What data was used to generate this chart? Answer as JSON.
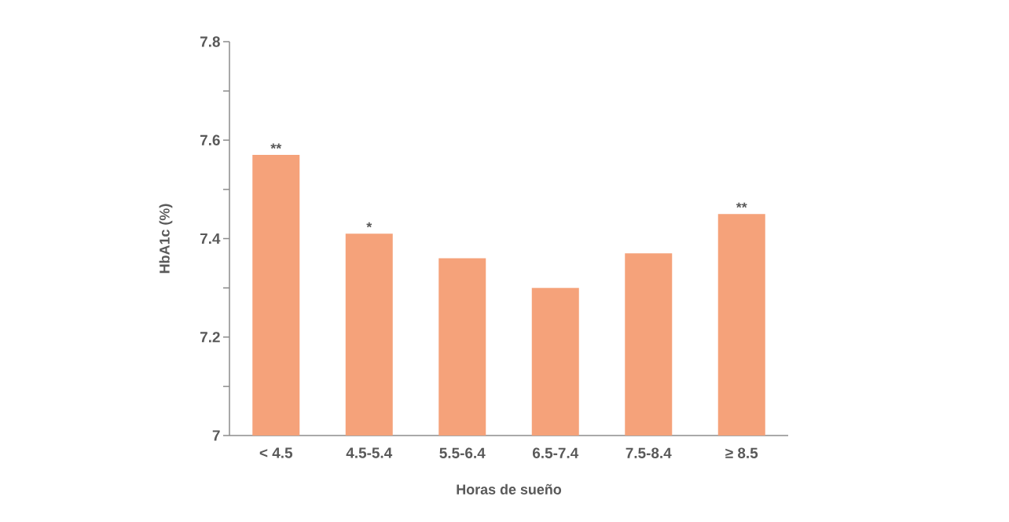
{
  "chart_data": {
    "type": "bar",
    "xlabel": "Horas de sueño",
    "ylabel": "HbA1c (%)",
    "categories": [
      "< 4.5",
      "4.5-5.4",
      "5.5-6.4",
      "6.5-7.4",
      "7.5-8.4",
      "≥ 8.5"
    ],
    "values": [
      7.57,
      7.41,
      7.36,
      7.3,
      7.37,
      7.45
    ],
    "color": "#f5a27a",
    "ylim": [
      7,
      7.8
    ],
    "yticks": [
      7,
      {
        "value": 7.1,
        "label": null
      },
      7.2,
      {
        "value": 7.3,
        "label": null
      },
      7.4,
      {
        "value": 7.5,
        "label": null
      },
      7.6,
      {
        "value": 7.7,
        "label": null
      },
      7.8
    ],
    "annotations": [
      {
        "text": "**",
        "x": "< 4.5",
        "y": 7.57
      },
      {
        "text": "*",
        "x": "4.5-5.4",
        "y": 7.41
      },
      {
        "text": "**",
        "x": "≥ 8.5",
        "y": 7.45
      }
    ],
    "grid": false
  }
}
